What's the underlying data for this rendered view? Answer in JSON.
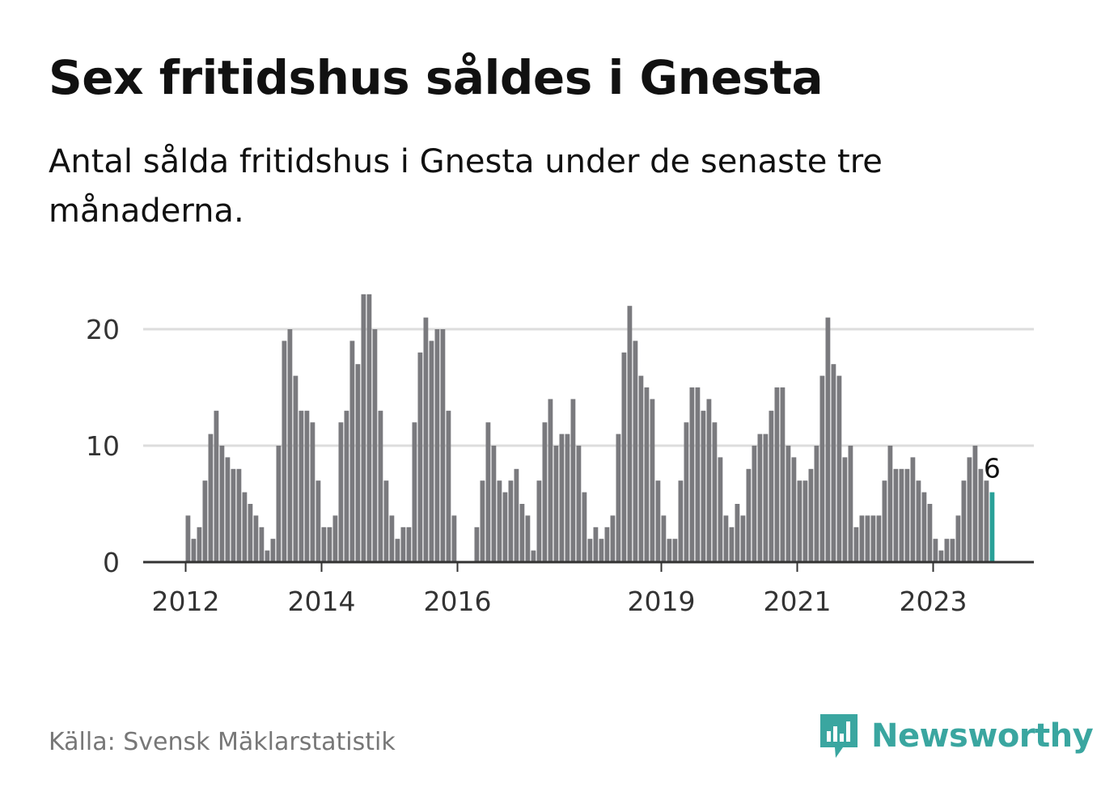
{
  "header": {
    "title": "Sex fritidshus såldes i Gnesta",
    "subtitle": "Antal sålda fritidshus i Gnesta under de senaste tre månaderna."
  },
  "footer": {
    "source": "Källa: Svensk Mäklarstatistik",
    "brand": "Newsworthy",
    "brand_icon": "newsworthy-logo-icon"
  },
  "colors": {
    "bar": "#7a7a7e",
    "highlight": "#2aa198",
    "grid": "#dddddd",
    "axis": "#333333",
    "brand": "#3aa6a0"
  },
  "chart_data": {
    "type": "bar",
    "title": "Sex fritidshus såldes i Gnesta",
    "subtitle": "Antal sålda fritidshus i Gnesta under de senaste tre månaderna.",
    "xlabel": "",
    "ylabel": "",
    "start": "2012-01",
    "frequency": "monthly",
    "ylim": [
      0,
      24
    ],
    "yticks": [
      0,
      10,
      20
    ],
    "xtick_labels": [
      "2012",
      "2014",
      "2016",
      "2019",
      "2021",
      "2023"
    ],
    "grid": true,
    "highlight_label": "6",
    "values": [
      4,
      2,
      3,
      7,
      11,
      13,
      10,
      9,
      8,
      8,
      6,
      5,
      4,
      3,
      1,
      2,
      10,
      19,
      20,
      16,
      13,
      13,
      12,
      7,
      3,
      3,
      4,
      12,
      13,
      19,
      17,
      23,
      23,
      20,
      13,
      7,
      4,
      2,
      3,
      3,
      12,
      18,
      21,
      19,
      20,
      20,
      13,
      4,
      0,
      0,
      0,
      3,
      7,
      12,
      10,
      7,
      6,
      7,
      8,
      5,
      4,
      1,
      7,
      12,
      14,
      10,
      11,
      11,
      14,
      10,
      6,
      2,
      3,
      2,
      3,
      4,
      11,
      18,
      22,
      19,
      16,
      15,
      14,
      7,
      4,
      2,
      2,
      7,
      12,
      15,
      15,
      13,
      14,
      12,
      9,
      4,
      3,
      5,
      4,
      8,
      10,
      11,
      11,
      13,
      15,
      15,
      10,
      9,
      7,
      7,
      8,
      10,
      16,
      21,
      17,
      16,
      9,
      10,
      3,
      4,
      4,
      4,
      4,
      7,
      10,
      8,
      8,
      8,
      9,
      7,
      6,
      5,
      2,
      1,
      2,
      2,
      4,
      7,
      9,
      10,
      8,
      7,
      6
    ]
  }
}
